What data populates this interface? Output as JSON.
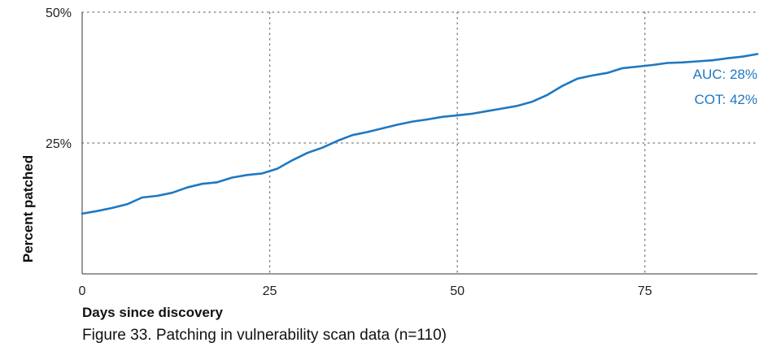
{
  "caption": "Figure 33. Patching in vulnerability scan data (n=110)",
  "chart_data": {
    "type": "line",
    "xlabel": "Days since discovery",
    "ylabel": "Percent patched",
    "xlim": [
      0,
      90
    ],
    "ylim": [
      0,
      50
    ],
    "x_ticks": [
      0,
      25,
      50,
      75
    ],
    "x_tick_labels": [
      "0",
      "25",
      "50",
      "75"
    ],
    "y_ticks": [
      25,
      50
    ],
    "y_tick_labels": [
      "25%",
      "50%"
    ],
    "grid": true,
    "annotations": [
      "AUC: 28%",
      "COT: 42%"
    ],
    "colors": {
      "line": "#1f78c1",
      "annotation": "#1f78c1",
      "grid": "#777777",
      "axis": "#333333"
    },
    "series": [
      {
        "x": [
          0,
          2,
          4,
          6,
          8,
          10,
          12,
          14,
          16,
          18,
          20,
          22,
          24,
          26,
          28,
          30,
          32,
          34,
          36,
          38,
          40,
          42,
          44,
          46,
          48,
          50,
          52,
          54,
          56,
          58,
          60,
          62,
          64,
          66,
          68,
          70,
          72,
          74,
          76,
          78,
          80,
          82,
          84,
          86,
          88,
          90
        ],
        "y": [
          11.5,
          12.0,
          12.6,
          13.3,
          14.6,
          14.9,
          15.5,
          16.5,
          17.2,
          17.5,
          18.4,
          18.9,
          19.2,
          20.1,
          21.7,
          23.1,
          24.1,
          25.4,
          26.5,
          27.1,
          27.8,
          28.5,
          29.1,
          29.5,
          30.0,
          30.3,
          30.6,
          31.1,
          31.6,
          32.1,
          32.9,
          34.2,
          35.9,
          37.3,
          37.9,
          38.4,
          39.3,
          39.6,
          39.9,
          40.3,
          40.4,
          40.6,
          40.8,
          41.2,
          41.5,
          42.0
        ]
      }
    ]
  }
}
